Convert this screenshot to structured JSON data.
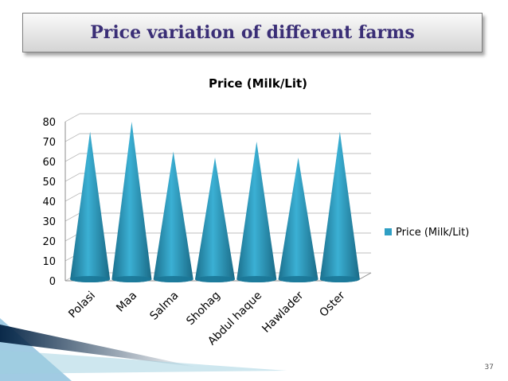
{
  "slide": {
    "title": "Price variation of different farms",
    "page_number": "37"
  },
  "colors": {
    "cone": "#2f9fc4",
    "title_text": "#3a2e76"
  },
  "chart_data": {
    "type": "bar",
    "bar_shape": "cone",
    "title": "Price (Milk/Lit)",
    "categories": [
      "Polasi",
      "Maa",
      "Salma",
      "Shohag",
      "Abdul haque",
      "Hawlader",
      "Oster"
    ],
    "series": [
      {
        "name": "Price (Milk/Lit)",
        "values": [
          75,
          80,
          65,
          62,
          70,
          62,
          75
        ]
      }
    ],
    "ylim": [
      0,
      80
    ],
    "yticks": [
      0,
      10,
      20,
      30,
      40,
      50,
      60,
      70,
      80
    ],
    "grid": true,
    "legend": "right"
  }
}
